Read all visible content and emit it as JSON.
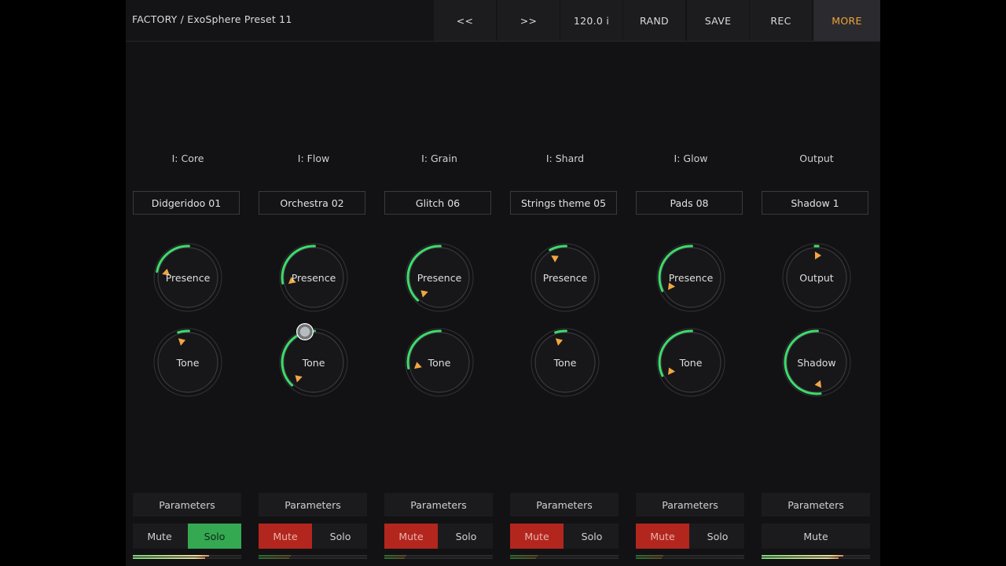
{
  "toolbar": {
    "preset_path": "FACTORY / ExoSphere Preset 11",
    "buttons": [
      {
        "id": "prev",
        "label": "<<"
      },
      {
        "id": "next",
        "label": ">>"
      },
      {
        "id": "tempo",
        "label": "120.0 i"
      },
      {
        "id": "rand",
        "label": "RAND"
      },
      {
        "id": "save",
        "label": "SAVE"
      },
      {
        "id": "rec",
        "label": "REC"
      },
      {
        "id": "more",
        "label": "MORE"
      }
    ]
  },
  "colors": {
    "accent_text": "#f0a43a",
    "arc_active": "#3ddc6a",
    "pointer": "#f2a641",
    "mute_on": "#b3261e",
    "solo_on": "#35a852"
  },
  "channels": [
    {
      "title": "I: Core",
      "preset": "Didgeridoo 01",
      "knob1": {
        "label": "Presence",
        "value": 0.22
      },
      "knob2": {
        "label": "Tone",
        "value": 0.05
      },
      "parameters_label": "Parameters",
      "mute_label": "Mute",
      "solo_label": "Solo",
      "mute_on": false,
      "solo_on": true,
      "meter_level": 0.7
    },
    {
      "title": "I: Flow",
      "preset": "Orchestra 02",
      "knob1": {
        "label": "Presence",
        "value": 0.28
      },
      "knob2": {
        "label": "Tone",
        "value": 0.38
      },
      "parameters_label": "Parameters",
      "mute_label": "Mute",
      "solo_label": "Solo",
      "mute_on": true,
      "solo_on": false,
      "meter_level": 0.3
    },
    {
      "title": "I: Grain",
      "preset": "Glitch 06",
      "knob1": {
        "label": "Presence",
        "value": 0.38
      },
      "knob2": {
        "label": "Tone",
        "value": 0.28
      },
      "parameters_label": "Parameters",
      "mute_label": "Mute",
      "solo_label": "Solo",
      "mute_on": true,
      "solo_on": false,
      "meter_level": 0.2
    },
    {
      "title": "I: Shard",
      "preset": "Strings theme 05",
      "knob1": {
        "label": "Presence",
        "value": 0.08
      },
      "knob2": {
        "label": "Tone",
        "value": 0.05
      },
      "parameters_label": "Parameters",
      "mute_label": "Mute",
      "solo_label": "Solo",
      "mute_on": true,
      "solo_on": false,
      "meter_level": 0.25
    },
    {
      "title": "I: Glow",
      "preset": "Pads 08",
      "knob1": {
        "label": "Presence",
        "value": 0.32
      },
      "knob2": {
        "label": "Tone",
        "value": 0.32
      },
      "parameters_label": "Parameters",
      "mute_label": "Mute",
      "solo_label": "Solo",
      "mute_on": true,
      "solo_on": false,
      "meter_level": 0.25
    },
    {
      "title": "Output",
      "preset": "Shadow 1",
      "knob1": {
        "label": "Output",
        "value": 0.0
      },
      "knob2": {
        "label": "Shadow",
        "value": 0.52
      },
      "parameters_label": "Parameters",
      "mute_label": "Mute",
      "solo_label": null,
      "mute_on": false,
      "solo_on": false,
      "meter_level": 0.75
    }
  ]
}
